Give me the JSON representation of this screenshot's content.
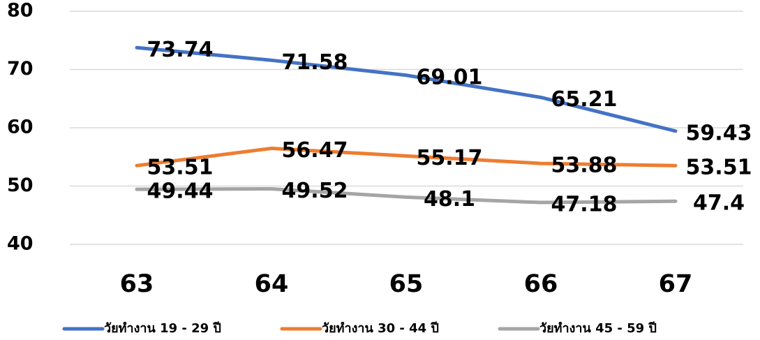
{
  "chart_data": {
    "type": "line",
    "categories": [
      "63",
      "64",
      "65",
      "66",
      "67"
    ],
    "series": [
      {
        "name": "วัยทำงาน 19 - 29 ปี",
        "color": "#4472c4",
        "values": [
          73.74,
          71.58,
          69.01,
          65.21,
          59.43
        ]
      },
      {
        "name": "วัยทำงาน 30 - 44 ปี",
        "color": "#ed7d31",
        "values": [
          53.51,
          56.47,
          55.17,
          53.88,
          53.51
        ]
      },
      {
        "name": "วัยทำงาน 45 - 59 ปี",
        "color": "#a5a5a5",
        "values": [
          49.44,
          49.52,
          48.1,
          47.18,
          47.4
        ]
      }
    ],
    "ylim": [
      40,
      80
    ],
    "yticks": [
      40,
      50,
      60,
      70,
      80
    ],
    "grid": true,
    "legend": "bottom"
  }
}
